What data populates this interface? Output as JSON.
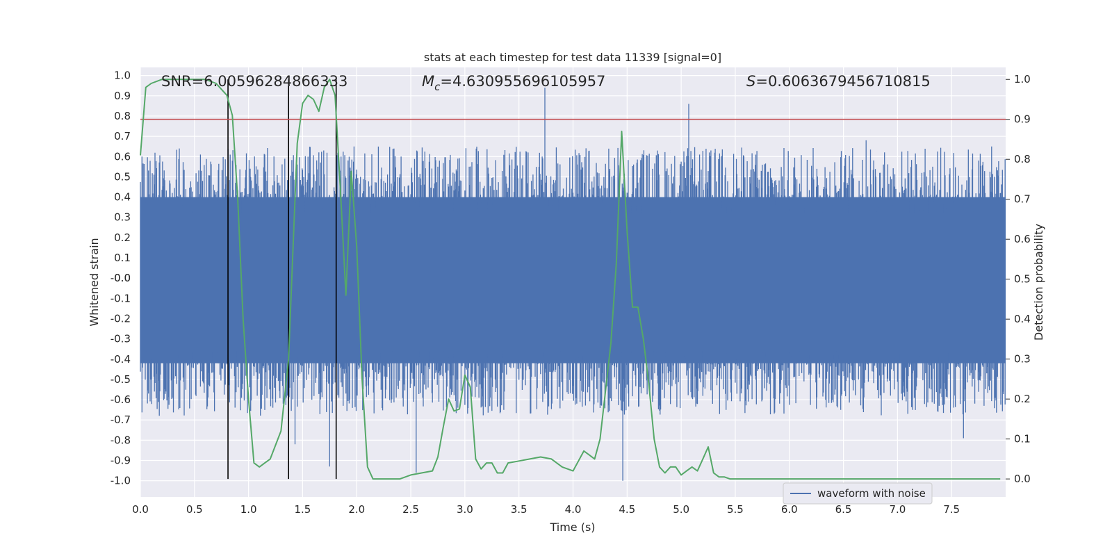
{
  "chart_data": {
    "type": "line",
    "title": "stats at each timestep for test data 11339 [signal=0]",
    "xlabel": "Time (s)",
    "ylabel_left": "Whitened strain",
    "ylabel_right": "Detection probability",
    "xlim": [
      0.0,
      8.0
    ],
    "ylim_left": [
      -1.08,
      1.04
    ],
    "ylim_right": [
      -0.045,
      1.03
    ],
    "x_ticks": [
      "0.0",
      "0.5",
      "1.0",
      "1.5",
      "2.0",
      "2.5",
      "3.0",
      "3.5",
      "4.0",
      "4.5",
      "5.0",
      "5.5",
      "6.0",
      "6.5",
      "7.0",
      "7.5"
    ],
    "y_left_ticks": [
      "1.0",
      "0.9",
      "0.8",
      "0.7",
      "0.6",
      "0.5",
      "0.4",
      "0.3",
      "0.2",
      "0.1",
      "0.0",
      "-0.0",
      "-0.1",
      "-0.2",
      "-0.3",
      "-0.4",
      "-0.5",
      "-0.6",
      "-0.7",
      "-0.8",
      "-0.9",
      "-1.0"
    ],
    "y_left_tick_values": [
      1.0,
      0.9,
      0.8,
      0.7,
      0.6,
      0.5,
      0.4,
      0.3,
      0.2,
      0.1,
      0.0,
      -0.0,
      -0.1,
      -0.2,
      -0.3,
      -0.4,
      -0.5,
      -0.6,
      -0.7,
      -0.8,
      -0.9,
      -1.0
    ],
    "y_right_ticks": [
      "1.0",
      "0.9",
      "0.8",
      "0.7",
      "0.6",
      "0.5",
      "0.4",
      "0.3",
      "0.2",
      "0.1",
      "0.0"
    ],
    "annotations": {
      "snr": "SNR=6.00596284866333",
      "mc": "M_c=4.630955696105957",
      "mc_symbol": "M",
      "mc_subscript": "c",
      "mc_value": "=4.630955696105957",
      "s": "S=0.6063679456710815",
      "s_symbol": "S",
      "s_value": "=0.6063679456710815"
    },
    "threshold": 0.9,
    "vertical_markers": [
      0.81,
      1.37,
      1.81
    ],
    "waveform": {
      "name": "waveform with noise",
      "color": "#4c72b0",
      "duration": 8.0,
      "sample_count": 1600,
      "core_band": [
        -0.42,
        0.4
      ],
      "spikes": [
        {
          "t": 3.74,
          "v": 0.94
        },
        {
          "t": 5.07,
          "v": 0.86
        },
        {
          "t": 4.46,
          "v": -1.0
        },
        {
          "t": 2.55,
          "v": -0.96
        },
        {
          "t": 1.43,
          "v": -0.82
        },
        {
          "t": 6.71,
          "v": 0.68
        },
        {
          "t": 7.61,
          "v": -0.79
        },
        {
          "t": 1.75,
          "v": -0.93
        }
      ]
    },
    "probability": {
      "name": "detection probability",
      "color": "#55a868",
      "x": [
        0.0,
        0.05,
        0.1,
        0.2,
        0.3,
        0.4,
        0.5,
        0.6,
        0.7,
        0.8,
        0.85,
        0.9,
        0.95,
        1.0,
        1.05,
        1.1,
        1.2,
        1.3,
        1.37,
        1.45,
        1.5,
        1.55,
        1.6,
        1.65,
        1.7,
        1.75,
        1.8,
        1.85,
        1.9,
        1.95,
        2.0,
        2.05,
        2.1,
        2.15,
        2.2,
        2.3,
        2.4,
        2.5,
        2.6,
        2.7,
        2.75,
        2.8,
        2.85,
        2.9,
        2.95,
        3.0,
        3.05,
        3.1,
        3.15,
        3.2,
        3.25,
        3.3,
        3.35,
        3.4,
        3.5,
        3.6,
        3.7,
        3.8,
        3.9,
        4.0,
        4.05,
        4.1,
        4.15,
        4.2,
        4.25,
        4.3,
        4.35,
        4.4,
        4.45,
        4.5,
        4.55,
        4.6,
        4.65,
        4.7,
        4.75,
        4.8,
        4.85,
        4.9,
        4.95,
        5.0,
        5.05,
        5.1,
        5.15,
        5.2,
        5.25,
        5.3,
        5.35,
        5.4,
        5.45,
        5.5,
        5.55,
        5.6,
        5.65,
        5.7,
        5.75,
        5.8,
        5.85,
        5.9,
        5.95,
        6.0,
        6.05,
        6.1,
        6.2,
        6.3,
        6.4,
        6.5,
        6.6,
        6.65,
        6.7,
        6.75,
        6.8,
        6.85,
        6.9,
        6.95,
        7.0,
        7.05,
        7.1,
        7.15,
        7.2,
        7.3,
        7.4,
        7.45,
        7.5,
        7.6,
        7.65,
        7.7,
        7.75,
        7.8,
        7.85,
        7.9,
        7.95
      ],
      "y": [
        0.81,
        0.98,
        0.99,
        1.0,
        1.0,
        1.0,
        1.0,
        1.0,
        0.99,
        0.96,
        0.91,
        0.7,
        0.4,
        0.2,
        0.04,
        0.03,
        0.05,
        0.12,
        0.3,
        0.84,
        0.94,
        0.96,
        0.95,
        0.92,
        0.98,
        1.0,
        0.96,
        0.72,
        0.46,
        0.77,
        0.58,
        0.25,
        0.03,
        0.0,
        0.0,
        0.0,
        0.0,
        0.01,
        0.015,
        0.02,
        0.055,
        0.13,
        0.2,
        0.17,
        0.175,
        0.26,
        0.23,
        0.05,
        0.025,
        0.04,
        0.04,
        0.015,
        0.015,
        0.04,
        0.045,
        0.05,
        0.055,
        0.05,
        0.03,
        0.02,
        0.045,
        0.07,
        0.06,
        0.05,
        0.1,
        0.22,
        0.34,
        0.54,
        0.87,
        0.62,
        0.43,
        0.43,
        0.35,
        0.24,
        0.1,
        0.03,
        0.015,
        0.03,
        0.03,
        0.01,
        0.02,
        0.03,
        0.02,
        0.05,
        0.08,
        0.015,
        0.005,
        0.005,
        0.0,
        0.0,
        0.0,
        0.0,
        0.0,
        0.0,
        0.0,
        0.0,
        0.0,
        0.0,
        0.0,
        0.0,
        0.0,
        0.0,
        0.0,
        0.0,
        0.0,
        0.0,
        0.0,
        0.0,
        0.0,
        0.0,
        0.0,
        0.0,
        0.0,
        0.0,
        0.0,
        0.0,
        0.0,
        0.0,
        0.0,
        0.0,
        0.0,
        0.0,
        0.0,
        0.0,
        0.0,
        0.0,
        0.0,
        0.0,
        0.0,
        0.0,
        0.0
      ]
    },
    "legend": {
      "label": "waveform with noise",
      "placement": "bottom-right"
    },
    "grid": true
  }
}
